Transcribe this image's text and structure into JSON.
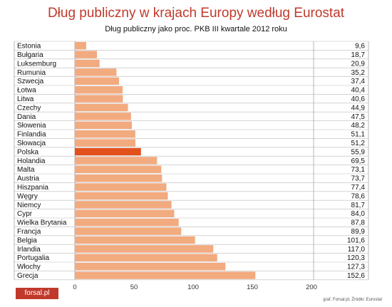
{
  "chart_data": {
    "type": "bar",
    "orientation": "horizontal",
    "title": "Dług publiczny w krajach Europy według Eurostat",
    "subtitle": "Dług publiczny jako proc. PKB III kwartale 2012 roku",
    "categories": [
      "Estonia",
      "Bułgaria",
      "Luksemburg",
      "Rumunia",
      "Szwecja",
      "Łotwa",
      "Litwa",
      "Czechy",
      "Dania",
      "Słowenia",
      "Finlandia",
      "Słowacja",
      "Polska",
      "Holandia",
      "Malta",
      "Austria",
      "Hiszpania",
      "Węgry",
      "Niemcy",
      "Cypr",
      "Wielka Brytania",
      "Francja",
      "Belgia",
      "Irlandia",
      "Portugalia",
      "Włochy",
      "Grecja"
    ],
    "value_labels": [
      "9,6",
      "18,7",
      "20,9",
      "35,2",
      "37,4",
      "40,4",
      "40,6",
      "44,9",
      "47,5",
      "48,2",
      "51,1",
      "51,2",
      "55,9",
      "69,5",
      "73,1",
      "73,7",
      "77,4",
      "78,6",
      "81,7",
      "84,0",
      "87,8",
      "89,9",
      "101,6",
      "117,0",
      "120,3",
      "127,3",
      "152,6"
    ],
    "values": [
      9.6,
      18.7,
      20.9,
      35.2,
      37.4,
      40.4,
      40.6,
      44.9,
      47.5,
      48.2,
      51.1,
      51.2,
      55.9,
      69.5,
      73.1,
      73.7,
      77.4,
      78.6,
      81.7,
      84.0,
      87.8,
      89.9,
      101.6,
      117.0,
      120.3,
      127.3,
      152.6
    ],
    "xlim": [
      0,
      200
    ],
    "xticks": [
      "0",
      "50",
      "100",
      "150",
      "200"
    ],
    "highlight": "Polska",
    "grid": true,
    "colors": {
      "bar": "#f2aa7f",
      "highlight": "#e2501c",
      "title": "#c0392b"
    }
  },
  "footer": {
    "logo": "forsal.pl",
    "source": "graf. Forsal.pl, Źródło: Eurostat"
  }
}
